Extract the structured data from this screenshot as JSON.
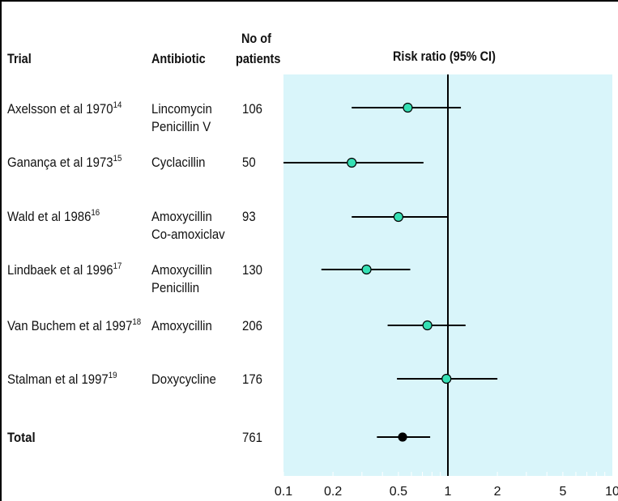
{
  "headers": {
    "trial": "Trial",
    "antibiotic": "Antibiotic",
    "patients_line1": "No of",
    "patients_line2": "patients",
    "plot_title": "Risk ratio (95% CI)"
  },
  "rows": [
    {
      "trial": "Axelsson et al 1970",
      "ref": "14",
      "antibiotic": [
        "Lincomycin",
        "Penicillin V"
      ],
      "patients": "106"
    },
    {
      "trial": "Ganança et al 1973",
      "ref": "15",
      "antibiotic": [
        "Cyclacillin"
      ],
      "patients": "50"
    },
    {
      "trial": "Wald et al 1986",
      "ref": "16",
      "antibiotic": [
        "Amoxycillin",
        "Co-amoxiclav"
      ],
      "patients": "93"
    },
    {
      "trial": "Lindbaek et al 1996",
      "ref": "17",
      "antibiotic": [
        "Amoxycillin",
        "Penicillin"
      ],
      "patients": "130"
    },
    {
      "trial": "Van Buchem et al 1997",
      "ref": "18",
      "antibiotic": [
        "Amoxycillin"
      ],
      "patients": "206"
    },
    {
      "trial": "Stalman et al 1997",
      "ref": "19",
      "antibiotic": [
        "Doxycycline"
      ],
      "patients": "176"
    }
  ],
  "total": {
    "label": "Total",
    "patients": "761"
  },
  "colors": {
    "panel": "#d9f5fa",
    "study_marker": "#35e0b4",
    "total_marker": "#000000",
    "line": "#000000"
  },
  "chart_data": {
    "type": "forest",
    "title": "Risk ratio (95% CI)",
    "x_scale": "log",
    "xlim": [
      0.1,
      10
    ],
    "x_ticks": [
      0.1,
      0.2,
      0.5,
      1,
      2,
      5,
      10
    ],
    "x_tick_labels": [
      "0.1",
      "0.2",
      "0.5",
      "1",
      "2",
      "5",
      "10"
    ],
    "reference_line": 1,
    "grid": false,
    "estimates": [
      {
        "study": "Axelsson et al 1970",
        "rr": 0.57,
        "ci": [
          0.26,
          1.2
        ]
      },
      {
        "study": "Ganança et al 1973",
        "rr": 0.26,
        "ci": [
          0.1,
          0.71
        ]
      },
      {
        "study": "Wald et al 1986",
        "rr": 0.5,
        "ci": [
          0.26,
          1.0
        ]
      },
      {
        "study": "Lindbaek et al 1996",
        "rr": 0.32,
        "ci": [
          0.17,
          0.59
        ]
      },
      {
        "study": "Van Buchem et al 1997",
        "rr": 0.75,
        "ci": [
          0.43,
          1.28
        ]
      },
      {
        "study": "Stalman et al 1997",
        "rr": 0.98,
        "ci": [
          0.49,
          2.0
        ]
      },
      {
        "study": "Total",
        "rr": 0.53,
        "ci": [
          0.37,
          0.78
        ],
        "pooled": true
      }
    ]
  }
}
